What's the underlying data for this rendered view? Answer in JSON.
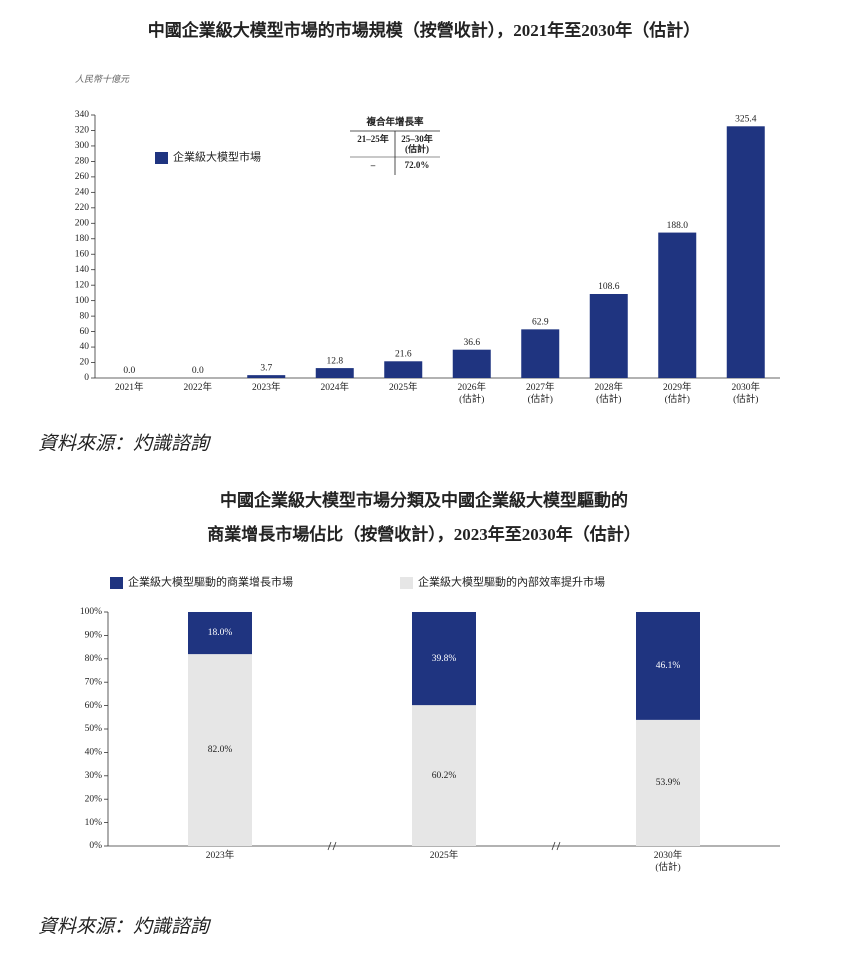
{
  "chart_data": [
    {
      "type": "bar",
      "title": "中國企業級大模型市場的市場規模（按營收計），2021年至2030年（估計）",
      "unit": "人民幣十億元",
      "categories": [
        "2021年",
        "2022年",
        "2023年",
        "2024年",
        "2025年",
        "2026年\n(估計)",
        "2027年\n(估計)",
        "2028年\n(估計)",
        "2029年\n(估計)",
        "2030年\n(估計)"
      ],
      "series": [
        {
          "name": "企業級大模型市場",
          "color": "#1f3480",
          "values": [
            0.0,
            0.0,
            3.7,
            12.8,
            21.6,
            36.6,
            62.9,
            108.6,
            188.0,
            325.4
          ],
          "value_labels": [
            "0.0",
            "0.0",
            "3.7",
            "12.8",
            "21.6",
            "36.6",
            "62.9",
            "108.6",
            "188.0",
            "325.4"
          ]
        }
      ],
      "ylim": [
        0,
        340
      ],
      "yticks": [
        0,
        20,
        40,
        60,
        80,
        100,
        120,
        140,
        160,
        180,
        200,
        220,
        240,
        260,
        280,
        300,
        320,
        340
      ],
      "cagr_table": {
        "title": "複合年增長率",
        "headers": [
          "21–25年",
          "25–30年\n(估計)"
        ],
        "values": [
          "–",
          "72.0%"
        ]
      },
      "source": "資料來源：灼識諮詢"
    },
    {
      "type": "stacked_bar",
      "title": "中國企業級大模型市場分類及中國企業級大模型驅動的\n商業增長市場佔比（按營收計），2023年至2030年（估計）",
      "categories": [
        "2023年",
        "2025年",
        "2030年\n(估計)"
      ],
      "series": [
        {
          "name": "企業級大模型驅動的商業增長市場",
          "color": "#1f3480",
          "values": [
            18.0,
            39.8,
            46.1
          ],
          "value_labels": [
            "18.0%",
            "39.8%",
            "46.1%"
          ]
        },
        {
          "name": "企業級大模型驅動的內部效率提升市場",
          "color": "#e6e6e6",
          "values": [
            82.0,
            60.2,
            53.9
          ],
          "value_labels": [
            "82.0%",
            "60.2%",
            "53.9%"
          ]
        }
      ],
      "ylim": [
        0,
        100
      ],
      "yticks": [
        {
          "value": 0,
          "label": "0%"
        },
        {
          "value": 10,
          "label": "10%"
        },
        {
          "value": 20,
          "label": "20%"
        },
        {
          "value": 30,
          "label": "30%"
        },
        {
          "value": 40,
          "label": "40%"
        },
        {
          "value": 50,
          "label": "50%"
        },
        {
          "value": 60,
          "label": "60%"
        },
        {
          "value": 70,
          "label": "70%"
        },
        {
          "value": 80,
          "label": "80%"
        },
        {
          "value": 90,
          "label": "90%"
        },
        {
          "value": 100,
          "label": "100%"
        }
      ],
      "source": "資料來源：灼識諮詢"
    }
  ]
}
